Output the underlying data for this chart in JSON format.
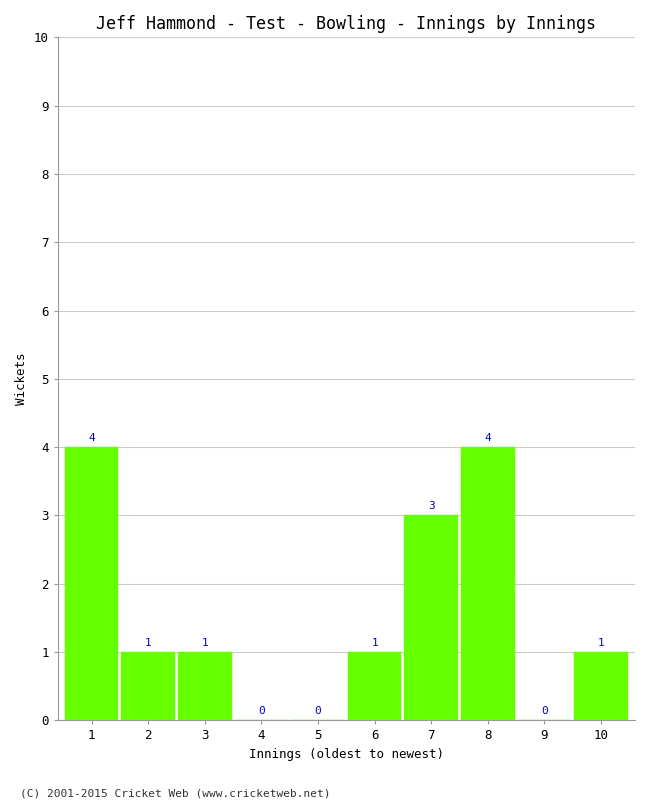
{
  "title": "Jeff Hammond - Test - Bowling - Innings by Innings",
  "xlabel": "Innings (oldest to newest)",
  "ylabel": "Wickets",
  "x_labels": [
    "1",
    "2",
    "3",
    "4",
    "5",
    "6",
    "7",
    "8",
    "9",
    "10"
  ],
  "values": [
    4,
    1,
    1,
    0,
    0,
    1,
    3,
    4,
    0,
    1
  ],
  "bar_color": "#66ff00",
  "bar_edge_color": "#66ff00",
  "annotation_color": "#0000cc",
  "ylim": [
    0,
    10
  ],
  "yticks": [
    0,
    1,
    2,
    3,
    4,
    5,
    6,
    7,
    8,
    9,
    10
  ],
  "background_color": "#ffffff",
  "grid_color": "#cccccc",
  "title_fontsize": 12,
  "axis_label_fontsize": 9,
  "tick_fontsize": 9,
  "annotation_fontsize": 8,
  "footer": "(C) 2001-2015 Cricket Web (www.cricketweb.net)"
}
